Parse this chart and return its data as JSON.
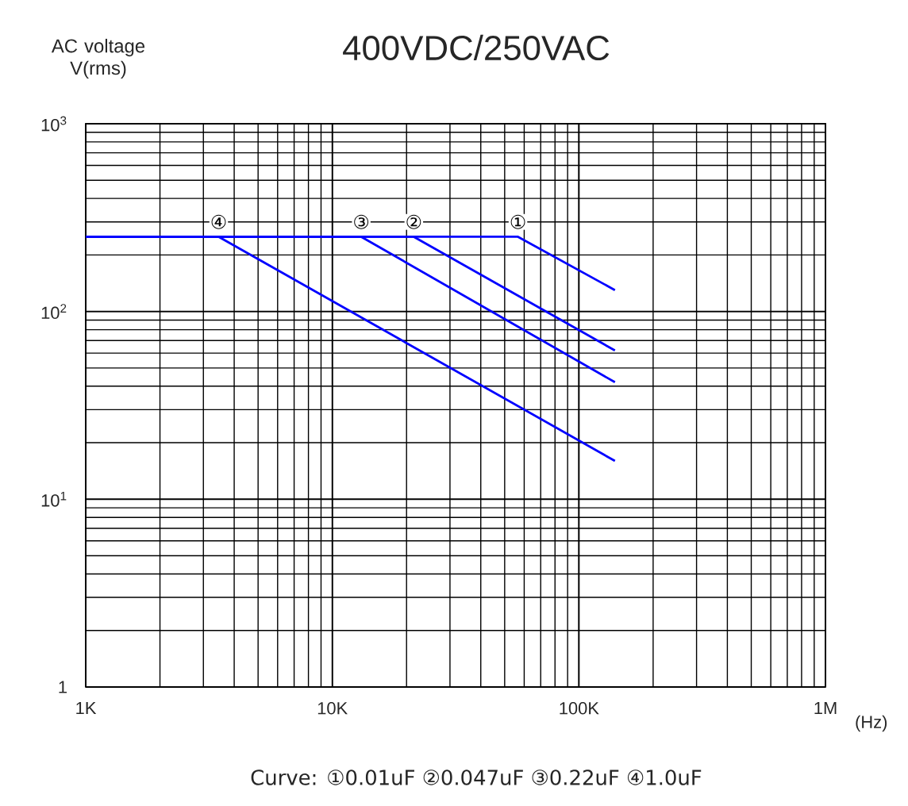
{
  "chart_data": {
    "type": "line",
    "title": "400VDC/250VAC",
    "xlabel": "(Hz)",
    "ylabel": "AC voltage V(rms)",
    "log": "xy",
    "grid": true,
    "line_style": "solid",
    "xlim": [
      1000,
      1000000
    ],
    "ylim": [
      1,
      1000
    ],
    "xticks": [
      {
        "value": 1000,
        "label": "1K"
      },
      {
        "value": 10000,
        "label": "10K"
      },
      {
        "value": 100000,
        "label": "100K"
      },
      {
        "value": 1000000,
        "label": "1M"
      }
    ],
    "yticks": [
      1,
      {
        "value": 10,
        "label": "10$^{1}$"
      },
      {
        "value": 100,
        "label": "10$^{2}$"
      },
      {
        "value": 1000,
        "label": "10$^{3}$"
      }
    ],
    "series": [
      {
        "color": "#0000ff",
        "x": [
          1000,
          56600,
          140000
        ],
        "values": [
          250,
          250,
          130
        ]
      },
      {
        "color": "#0000ff",
        "x": [
          1000,
          21400,
          140000
        ],
        "values": [
          250,
          250,
          62
        ]
      },
      {
        "color": "#0000ff",
        "x": [
          1000,
          13100,
          140000
        ],
        "values": [
          250,
          250,
          42
        ]
      },
      {
        "color": "#0000ff",
        "x": [
          1000,
          3460,
          140000
        ],
        "values": [
          250,
          250,
          16
        ]
      }
    ],
    "annotations": [
      {
        "text": "①",
        "x": 56600,
        "y": 300
      },
      {
        "text": "②",
        "x": 21400,
        "y": 300
      },
      {
        "text": "③",
        "x": 13100,
        "y": 300
      },
      {
        "text": "④",
        "x": 3460,
        "y": 300
      },
      "Curve: ①0.01uF ②0.047uF ③0.22uF ④1.0uF"
    ]
  }
}
